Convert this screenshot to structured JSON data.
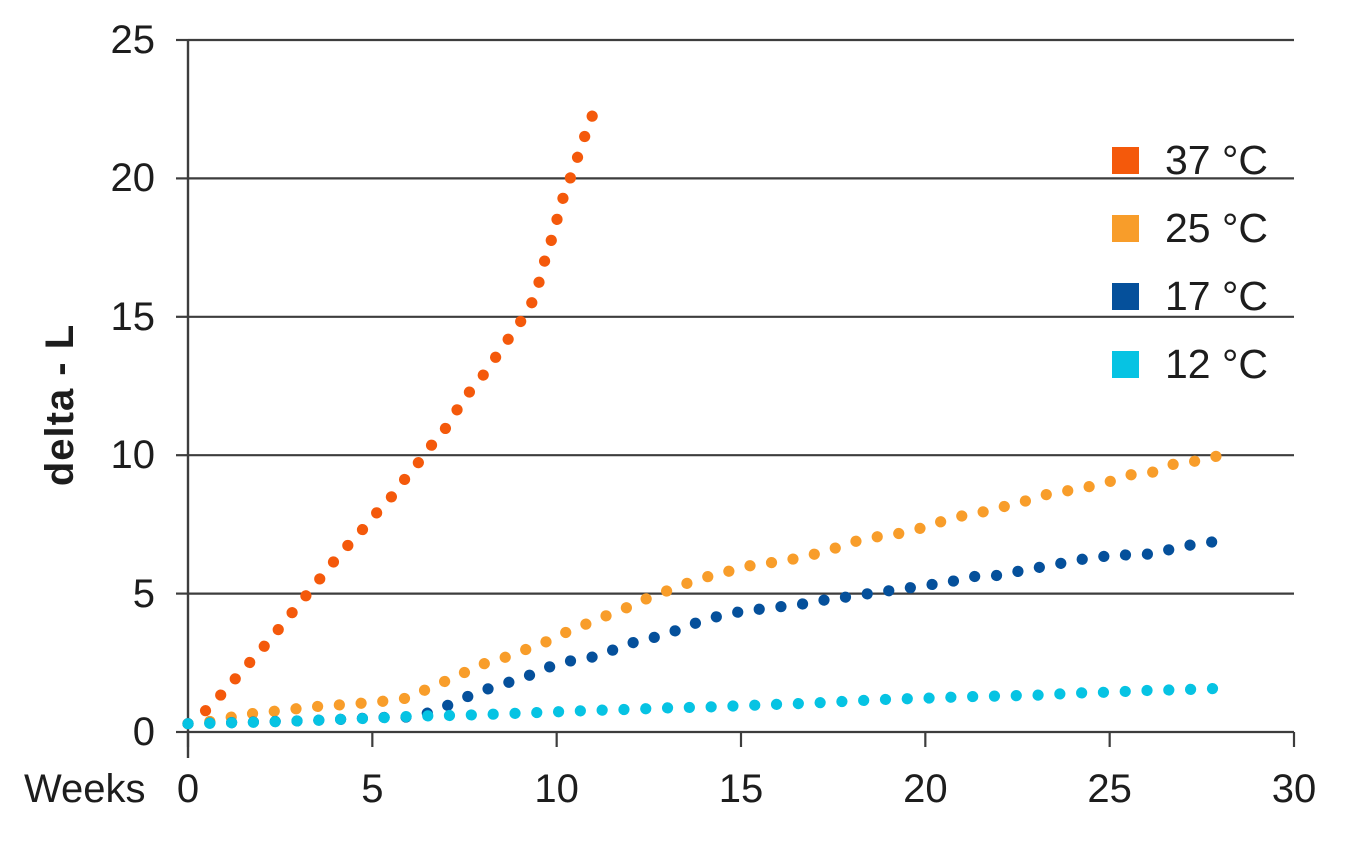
{
  "chart_data": {
    "type": "scatter",
    "title": "",
    "xlabel": "Weeks",
    "ylabel": "delta - L",
    "xlim": [
      0,
      30
    ],
    "ylim": [
      0,
      25
    ],
    "x_tick_labels": [
      "0",
      "5",
      "10",
      "15",
      "20",
      "25",
      "30"
    ],
    "x_tick_values": [
      0,
      5,
      10,
      15,
      20,
      25,
      30
    ],
    "y_tick_labels": [
      "0",
      "5",
      "10",
      "15",
      "20",
      "25"
    ],
    "y_tick_values": [
      0,
      5,
      10,
      15,
      20,
      25
    ],
    "grid": "horizontal",
    "legend_position": "upper-right",
    "marker_style": "dotted-curve",
    "series": [
      {
        "name": "37 °C",
        "slug": "37c",
        "color": "#F4590B",
        "points": [
          [
            0,
            0.3
          ],
          [
            0.5,
            0.8
          ],
          [
            1,
            1.5
          ],
          [
            1.4,
            2.1
          ],
          [
            1.8,
            2.7
          ],
          [
            2.2,
            3.3
          ],
          [
            2.6,
            3.95
          ],
          [
            3,
            4.6
          ],
          [
            3.4,
            5.25
          ],
          [
            3.8,
            5.9
          ],
          [
            4.2,
            6.55
          ],
          [
            4.6,
            7.1
          ],
          [
            5,
            7.75
          ],
          [
            5.4,
            8.3
          ],
          [
            5.8,
            9
          ],
          [
            6.2,
            9.65
          ],
          [
            6.6,
            10.35
          ],
          [
            7,
            11
          ],
          [
            7.35,
            11.75
          ],
          [
            7.7,
            12.4
          ],
          [
            8.1,
            13.05
          ],
          [
            8.45,
            13.75
          ],
          [
            8.85,
            14.5
          ],
          [
            9.2,
            15.2
          ],
          [
            9.45,
            15.9
          ],
          [
            9.6,
            16.7
          ],
          [
            9.78,
            17.45
          ],
          [
            9.95,
            18.2
          ],
          [
            10.1,
            19
          ],
          [
            10.3,
            19.75
          ],
          [
            10.5,
            20.5
          ],
          [
            10.7,
            21.3
          ],
          [
            10.9,
            22
          ],
          [
            11.1,
            22.8
          ]
        ]
      },
      {
        "name": "25 °C",
        "slug": "25c",
        "color": "#F89D2A",
        "points": [
          [
            0,
            0.3
          ],
          [
            0.7,
            0.4
          ],
          [
            1.4,
            0.6
          ],
          [
            2,
            0.7
          ],
          [
            2.7,
            0.8
          ],
          [
            3.3,
            0.9
          ],
          [
            3.8,
            0.95
          ],
          [
            4.5,
            1.02
          ],
          [
            5.2,
            1.1
          ],
          [
            5.9,
            1.22
          ],
          [
            6.4,
            1.5
          ],
          [
            7,
            1.85
          ],
          [
            7.5,
            2.15
          ],
          [
            8,
            2.45
          ],
          [
            8.6,
            2.7
          ],
          [
            9.2,
            3
          ],
          [
            9.7,
            3.25
          ],
          [
            10.25,
            3.6
          ],
          [
            10.8,
            3.9
          ],
          [
            11.35,
            4.2
          ],
          [
            12,
            4.55
          ],
          [
            12.5,
            4.85
          ],
          [
            13.1,
            5.15
          ],
          [
            13.6,
            5.4
          ],
          [
            14.2,
            5.65
          ],
          [
            14.8,
            5.85
          ],
          [
            15.4,
            6.05
          ],
          [
            16,
            6.15
          ],
          [
            16.6,
            6.3
          ],
          [
            17.2,
            6.5
          ],
          [
            17.8,
            6.75
          ],
          [
            18.4,
            7
          ],
          [
            19,
            7.1
          ],
          [
            19.7,
            7.3
          ],
          [
            20.2,
            7.5
          ],
          [
            20.8,
            7.75
          ],
          [
            21.4,
            7.9
          ],
          [
            22,
            8.1
          ],
          [
            22.6,
            8.3
          ],
          [
            23.2,
            8.55
          ],
          [
            23.8,
            8.7
          ],
          [
            24.4,
            8.85
          ],
          [
            25,
            9.05
          ],
          [
            25.6,
            9.3
          ],
          [
            26.2,
            9.4
          ],
          [
            26.8,
            9.7
          ],
          [
            27.4,
            9.8
          ],
          [
            28,
            10
          ]
        ]
      },
      {
        "name": "17 °C",
        "slug": "17c",
        "color": "#05509B",
        "points": [
          [
            0,
            0.3
          ],
          [
            0.6,
            0.32
          ],
          [
            1.2,
            0.34
          ],
          [
            1.8,
            0.36
          ],
          [
            2.4,
            0.38
          ],
          [
            3,
            0.4
          ],
          [
            3.6,
            0.43
          ],
          [
            4.2,
            0.46
          ],
          [
            4.8,
            0.5
          ],
          [
            5.4,
            0.53
          ],
          [
            6.1,
            0.56
          ],
          [
            6.65,
            0.75
          ],
          [
            7.2,
            1.05
          ],
          [
            7.8,
            1.4
          ],
          [
            8.35,
            1.65
          ],
          [
            8.95,
            1.9
          ],
          [
            9.55,
            2.2
          ],
          [
            10.1,
            2.5
          ],
          [
            10.8,
            2.65
          ],
          [
            11.4,
            2.9
          ],
          [
            12,
            3.2
          ],
          [
            12.6,
            3.4
          ],
          [
            13.2,
            3.65
          ],
          [
            13.7,
            3.9
          ],
          [
            14.3,
            4.15
          ],
          [
            15,
            4.35
          ],
          [
            15.6,
            4.45
          ],
          [
            16.2,
            4.55
          ],
          [
            16.8,
            4.65
          ],
          [
            17.4,
            4.8
          ],
          [
            18,
            4.9
          ],
          [
            18.7,
            5.05
          ],
          [
            19.3,
            5.15
          ],
          [
            20,
            5.3
          ],
          [
            20.6,
            5.4
          ],
          [
            21.2,
            5.6
          ],
          [
            21.9,
            5.65
          ],
          [
            22.5,
            5.8
          ],
          [
            23.1,
            5.95
          ],
          [
            23.7,
            6.1
          ],
          [
            24.3,
            6.25
          ],
          [
            24.9,
            6.35
          ],
          [
            25.5,
            6.4
          ],
          [
            26.2,
            6.45
          ],
          [
            26.8,
            6.65
          ],
          [
            27.4,
            6.8
          ],
          [
            28,
            6.9
          ]
        ]
      },
      {
        "name": "12 °C",
        "slug": "12c",
        "color": "#06C3E3",
        "points": [
          [
            0,
            0.3
          ],
          [
            1,
            0.33
          ],
          [
            2,
            0.36
          ],
          [
            3,
            0.4
          ],
          [
            4,
            0.45
          ],
          [
            5,
            0.5
          ],
          [
            5.8,
            0.55
          ],
          [
            6.5,
            0.58
          ],
          [
            7.2,
            0.6
          ],
          [
            8,
            0.63
          ],
          [
            9,
            0.68
          ],
          [
            10,
            0.73
          ],
          [
            11,
            0.78
          ],
          [
            12,
            0.82
          ],
          [
            13,
            0.87
          ],
          [
            14,
            0.9
          ],
          [
            15,
            0.95
          ],
          [
            16,
            1
          ],
          [
            17,
            1.05
          ],
          [
            18,
            1.12
          ],
          [
            19,
            1.18
          ],
          [
            20,
            1.22
          ],
          [
            21,
            1.27
          ],
          [
            22,
            1.3
          ],
          [
            23,
            1.33
          ],
          [
            24,
            1.4
          ],
          [
            25,
            1.44
          ],
          [
            26,
            1.5
          ],
          [
            27,
            1.53
          ],
          [
            28,
            1.58
          ]
        ]
      }
    ],
    "colors": {
      "grid": "#3d3d3d",
      "axis": "#3d3d3d",
      "text": "#1d1d1d",
      "background": "#ffffff"
    }
  }
}
